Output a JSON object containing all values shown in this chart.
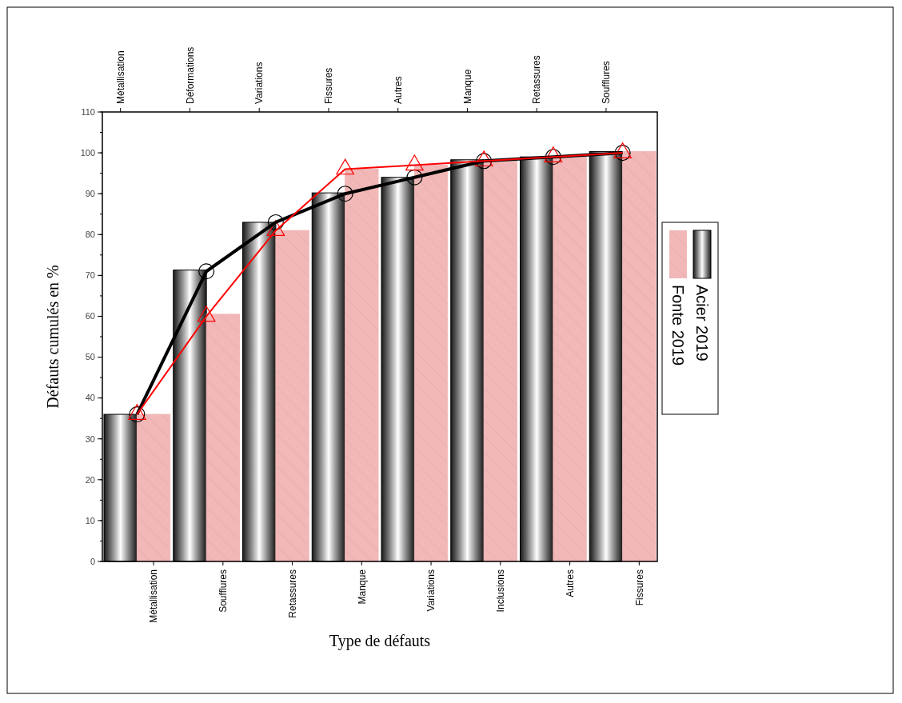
{
  "chart_data": {
    "type": "bar",
    "xlabel": "Type de défauts",
    "ylabel": "Défauts cumulés en %",
    "categories": [
      "Métallisation",
      "Soufflures",
      "Retassures",
      "Manque",
      "Variations",
      "Inclusions",
      "Autres",
      "Fissures"
    ],
    "annotations": [
      "Métallisation",
      "Déformations",
      "Variations",
      "Fissures",
      "Autres",
      "Manque",
      "Retassures",
      "Soufflures"
    ],
    "series": [
      {
        "name": "Acier 2019",
        "color": "#000000",
        "values": [
          36,
          71.3,
          83,
          90.2,
          94,
          98.3,
          99,
          100.3
        ]
      },
      {
        "name": "Fonte 2019",
        "color": "#f2b8b8",
        "values": [
          36,
          60.5,
          81,
          96,
          97,
          98,
          99,
          100.3
        ]
      },
      {
        "type": "line",
        "color": "#000000",
        "marker": "circle",
        "values": [
          36,
          71,
          83,
          90,
          94,
          98,
          99,
          100
        ]
      },
      {
        "type": "line",
        "color": "#ff0000",
        "marker": "triangle",
        "values": [
          36,
          60,
          81,
          96,
          97,
          98,
          99,
          100
        ]
      }
    ],
    "ylim": [
      0,
      110
    ],
    "yticks": [
      0,
      10,
      20,
      30,
      40,
      50,
      60,
      70,
      80,
      90,
      100,
      110
    ],
    "grid": false,
    "legend": "right"
  }
}
